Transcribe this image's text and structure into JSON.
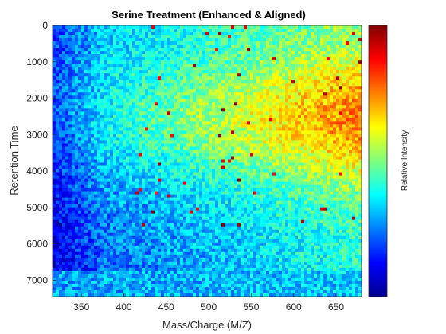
{
  "chart_data": {
    "type": "heatmap",
    "title": "Serine Treatment (Enhanced & Aligned)",
    "xlabel": "Mass/Charge (M/Z)",
    "ylabel": "Retention Time",
    "colorbar_label": "Relative Intensity",
    "colormap": "jet",
    "xlim": [
      316,
      680
    ],
    "ylim": [
      0,
      7450
    ],
    "y_reversed": true,
    "x_ticks": [
      350,
      400,
      450,
      500,
      550,
      600,
      650
    ],
    "y_ticks": [
      0,
      1000,
      2000,
      3000,
      4000,
      5000,
      6000,
      7000
    ],
    "x_tick_labels": [
      "350",
      "400",
      "450",
      "500",
      "550",
      "600",
      "650"
    ],
    "y_tick_labels": [
      "0",
      "1000",
      "2000",
      "3000",
      "4000",
      "5000",
      "6000",
      "7000"
    ],
    "grid": false,
    "colors": {
      "jet": [
        "#00008f",
        "#0000ff",
        "#0080ff",
        "#00ffff",
        "#80ff80",
        "#ffff00",
        "#ff8000",
        "#ff0000",
        "#800000"
      ]
    }
  }
}
